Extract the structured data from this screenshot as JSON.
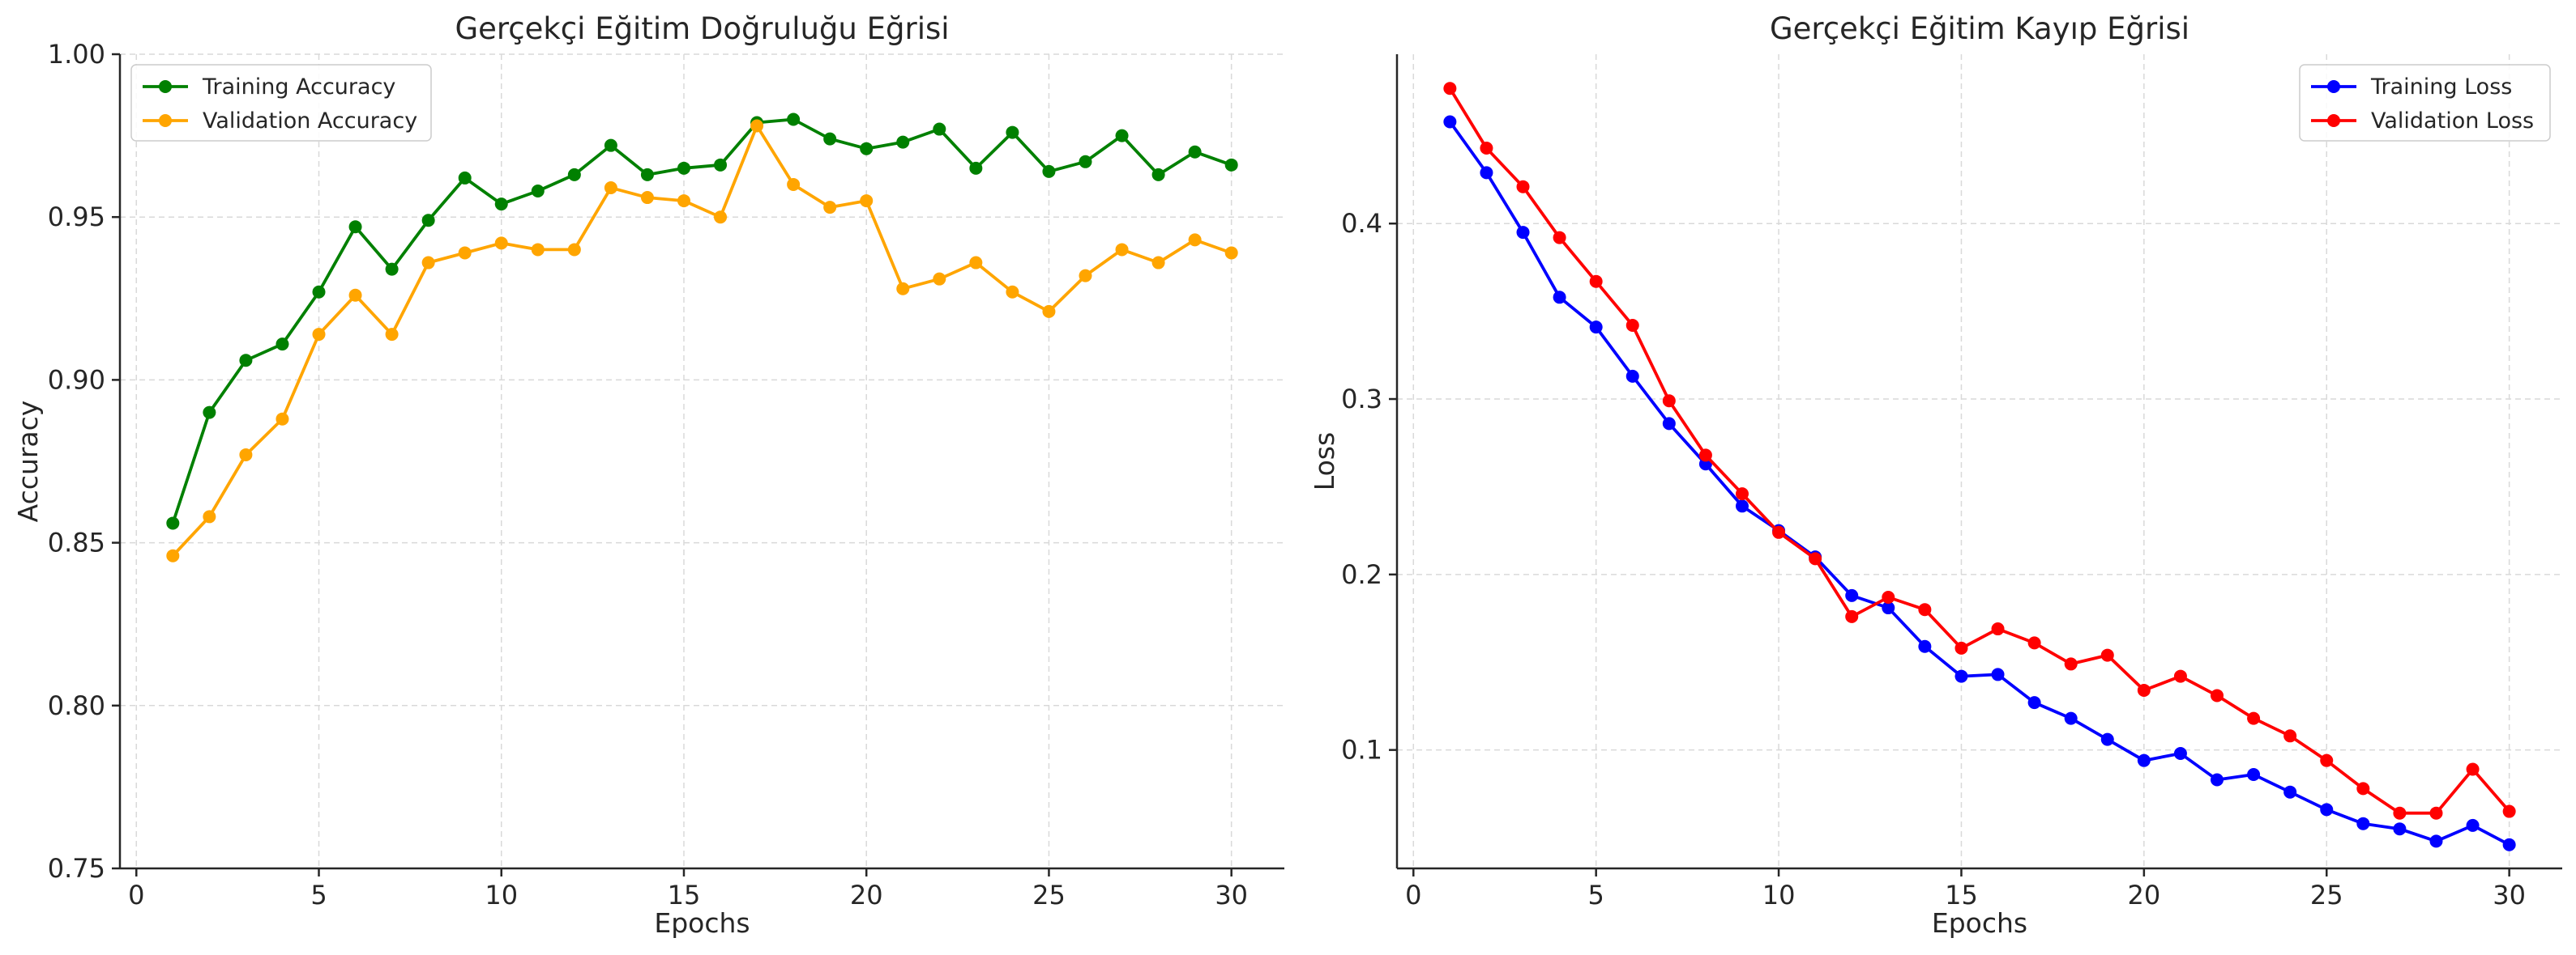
{
  "chart_data": [
    {
      "type": "line",
      "title": "Gerçekçi Eğitim Doğruluğu Eğrisi",
      "xlabel": "Epochs",
      "ylabel": "Accuracy",
      "xlim": [
        -0.45,
        31.45
      ],
      "ylim": [
        0.75,
        1.0
      ],
      "xticks": [
        0,
        5,
        10,
        15,
        20,
        25,
        30
      ],
      "xtick_labels": [
        "0",
        "5",
        "10",
        "15",
        "20",
        "25",
        "30"
      ],
      "yticks": [
        0.75,
        0.8,
        0.85,
        0.9,
        0.95,
        1.0
      ],
      "ytick_labels": [
        "0.75",
        "0.80",
        "0.85",
        "0.90",
        "0.95",
        "1.00"
      ],
      "grid": true,
      "legend_position": "top-left",
      "x": [
        1,
        2,
        3,
        4,
        5,
        6,
        7,
        8,
        9,
        10,
        11,
        12,
        13,
        14,
        15,
        16,
        17,
        18,
        19,
        20,
        21,
        22,
        23,
        24,
        25,
        26,
        27,
        28,
        29,
        30
      ],
      "series": [
        {
          "name": "Training Accuracy",
          "color": "#008000",
          "values": [
            0.856,
            0.89,
            0.906,
            0.911,
            0.927,
            0.947,
            0.934,
            0.949,
            0.962,
            0.954,
            0.958,
            0.963,
            0.972,
            0.963,
            0.965,
            0.966,
            0.979,
            0.98,
            0.974,
            0.971,
            0.973,
            0.977,
            0.965,
            0.976,
            0.964,
            0.967,
            0.975,
            0.963,
            0.97,
            0.966
          ]
        },
        {
          "name": "Validation Accuracy",
          "color": "#FFA500",
          "values": [
            0.846,
            0.858,
            0.877,
            0.888,
            0.914,
            0.926,
            0.914,
            0.936,
            0.939,
            0.942,
            0.94,
            0.94,
            0.959,
            0.956,
            0.955,
            0.95,
            0.978,
            0.96,
            0.953,
            0.955,
            0.928,
            0.931,
            0.936,
            0.927,
            0.921,
            0.932,
            0.94,
            0.936,
            0.943,
            0.939
          ]
        }
      ]
    },
    {
      "type": "line",
      "title": "Gerçekçi Eğitim Kayıp Eğrisi",
      "xlabel": "Epochs",
      "ylabel": "Loss",
      "xlim": [
        -0.45,
        31.45
      ],
      "ylim": [
        0.0325,
        0.4965
      ],
      "xticks": [
        0,
        5,
        10,
        15,
        20,
        25,
        30
      ],
      "xtick_labels": [
        "0",
        "5",
        "10",
        "15",
        "20",
        "25",
        "30"
      ],
      "yticks": [
        0.1,
        0.2,
        0.3,
        0.4
      ],
      "ytick_labels": [
        "0.1",
        "0.2",
        "0.3",
        "0.4"
      ],
      "grid": true,
      "legend_position": "top-right",
      "x": [
        1,
        2,
        3,
        4,
        5,
        6,
        7,
        8,
        9,
        10,
        11,
        12,
        13,
        14,
        15,
        16,
        17,
        18,
        19,
        20,
        21,
        22,
        23,
        24,
        25,
        26,
        27,
        28,
        29,
        30
      ],
      "series": [
        {
          "name": "Training Loss",
          "color": "#0000FF",
          "values": [
            0.458,
            0.429,
            0.395,
            0.358,
            0.341,
            0.313,
            0.286,
            0.263,
            0.239,
            0.225,
            0.21,
            0.188,
            0.181,
            0.159,
            0.142,
            0.143,
            0.127,
            0.118,
            0.106,
            0.094,
            0.098,
            0.083,
            0.086,
            0.076,
            0.066,
            0.058,
            0.055,
            0.048,
            0.057,
            0.046
          ]
        },
        {
          "name": "Validation Loss",
          "color": "#FF0000",
          "values": [
            0.477,
            0.443,
            0.421,
            0.392,
            0.367,
            0.342,
            0.299,
            0.268,
            0.246,
            0.224,
            0.209,
            0.176,
            0.187,
            0.18,
            0.158,
            0.169,
            0.161,
            0.149,
            0.154,
            0.134,
            0.142,
            0.131,
            0.118,
            0.108,
            0.094,
            0.078,
            0.064,
            0.064,
            0.089,
            0.065
          ]
        }
      ]
    }
  ]
}
